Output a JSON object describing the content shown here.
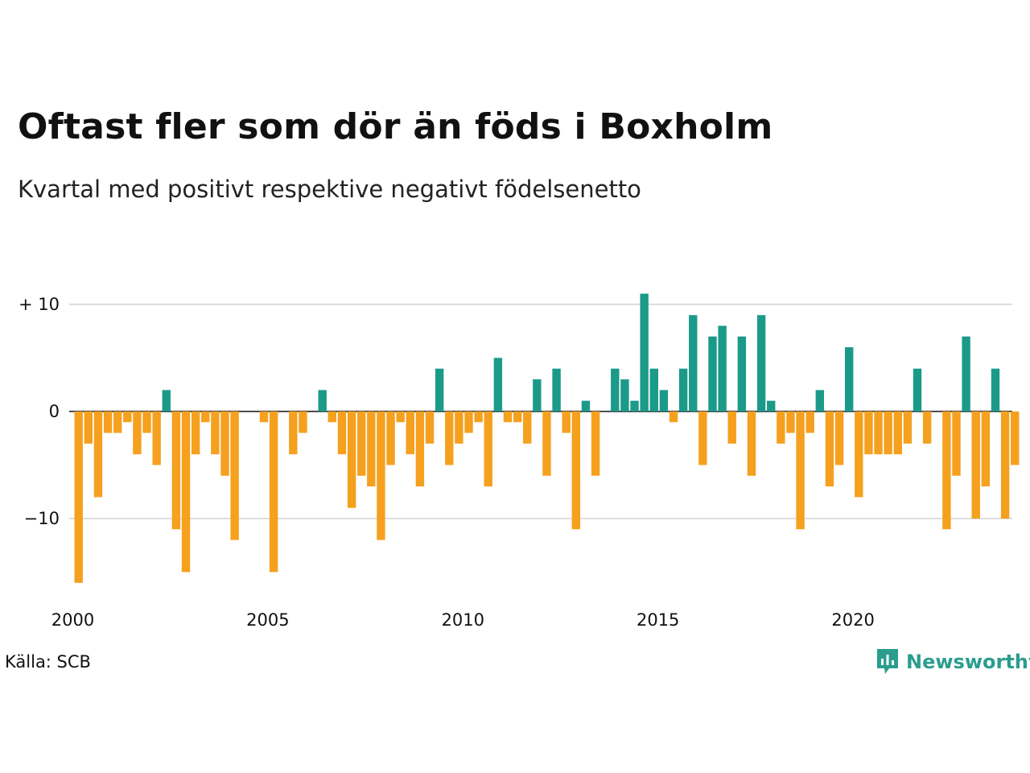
{
  "header": {
    "title": "Oftast fler som dör än föds i Boxholm",
    "subtitle": "Kvartal med positivt respektive negativt födelsenetto"
  },
  "footer": {
    "source": "Källa: SCB",
    "brand": "Newsworthy"
  },
  "colors": {
    "positive": "#1b9a8a",
    "negative": "#f5a01e",
    "grid": "#dddddd",
    "brand": "#2a9d8f"
  },
  "chart_data": {
    "type": "bar",
    "title": "Oftast fler som dör än föds i Boxholm",
    "subtitle": "Kvartal med positivt respektive negativt födelsenetto",
    "x_start_year": 2000,
    "periods_per_year": 4,
    "values": [
      -16,
      -3,
      -8,
      -2,
      -2,
      -1,
      -4,
      -2,
      -5,
      2,
      -11,
      -15,
      -4,
      -1,
      -4,
      -6,
      -12,
      0,
      0,
      -1,
      -15,
      0,
      -4,
      -2,
      0,
      2,
      -1,
      -4,
      -9,
      -6,
      -7,
      -12,
      -5,
      -1,
      -4,
      -7,
      -3,
      4,
      -5,
      -3,
      -2,
      -1,
      -7,
      5,
      -1,
      -1,
      -3,
      3,
      -6,
      4,
      -2,
      -11,
      1,
      -6,
      0,
      4,
      3,
      1,
      11,
      4,
      2,
      -1,
      4,
      9,
      -5,
      7,
      8,
      -3,
      7,
      -6,
      9,
      1,
      -3,
      -2,
      -11,
      -2,
      2,
      -7,
      -5,
      6,
      -8,
      -4,
      -4,
      -4,
      -4,
      -3,
      4,
      -3,
      0,
      -11,
      -6,
      7,
      -10,
      -7,
      4,
      -10,
      -5
    ],
    "yticks": [
      {
        "value": 10,
        "label": "+ 10"
      },
      {
        "value": 0,
        "label": "0"
      },
      {
        "value": -10,
        "label": "−10"
      }
    ],
    "xticks": [
      {
        "year": 2000,
        "label": "2000"
      },
      {
        "year": 2005,
        "label": "2005"
      },
      {
        "year": 2010,
        "label": "2010"
      },
      {
        "year": 2015,
        "label": "2015"
      },
      {
        "year": 2020,
        "label": "2020"
      }
    ],
    "ylim": [
      -17,
      12
    ],
    "grid": true,
    "legend": "none"
  }
}
